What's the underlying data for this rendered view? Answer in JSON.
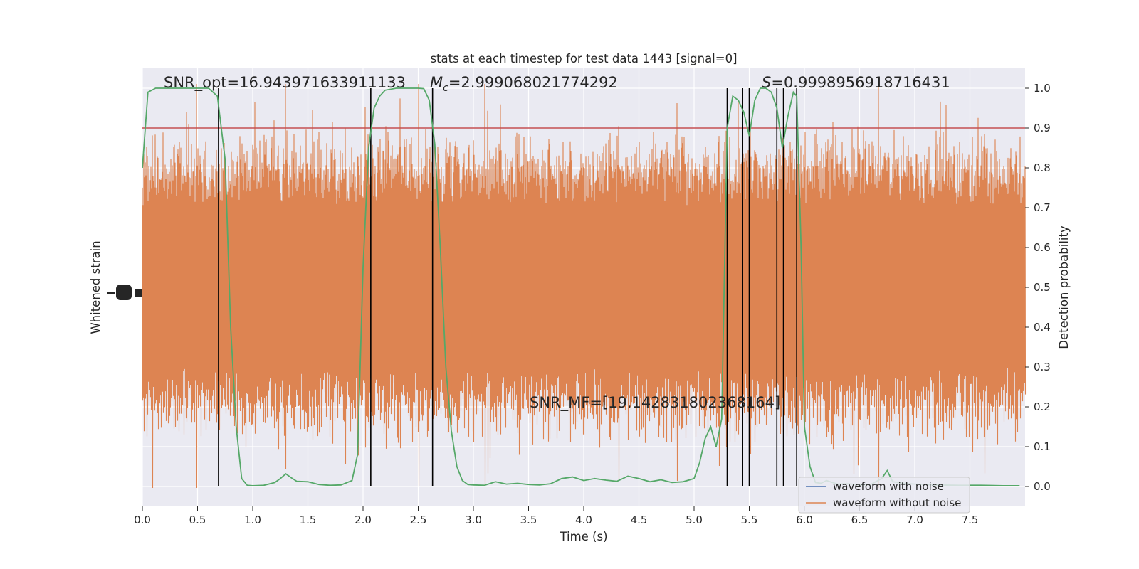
{
  "chart_data": {
    "type": "line",
    "title": "stats at each timestep for test data 1443 [signal=0]",
    "xlabel": "Time (s)",
    "ylabel_left": "Whitened strain",
    "ylabel_right": "Detection probability",
    "xlim": [
      0,
      8
    ],
    "ylim_right": [
      -0.05,
      1.05
    ],
    "x_ticks": [
      0.0,
      0.5,
      1.0,
      1.5,
      2.0,
      2.5,
      3.0,
      3.5,
      4.0,
      4.5,
      5.0,
      5.5,
      6.0,
      6.5,
      7.0,
      7.5
    ],
    "x_tick_labels": [
      "0.0",
      "0.5",
      "1.0",
      "1.5",
      "2.0",
      "2.5",
      "3.0",
      "3.5",
      "4.0",
      "4.5",
      "5.0",
      "5.5",
      "6.0",
      "6.5",
      "7.0",
      "7.5"
    ],
    "right_ticks": [
      0.0,
      0.1,
      0.2,
      0.3,
      0.4,
      0.5,
      0.6,
      0.7,
      0.8,
      0.9,
      1.0
    ],
    "right_tick_labels": [
      "0.0",
      "0.1",
      "0.2",
      "0.3",
      "0.4",
      "0.5",
      "0.6",
      "0.7",
      "0.8",
      "0.9",
      "1.0"
    ],
    "grid": true,
    "threshold": 0.9,
    "annotations": {
      "snr_opt": "SNR_opt=16.943971633911133",
      "mc_symbol": "M",
      "mc_sub": "c",
      "mc_value": "=2.999068021774292",
      "s_symbol": "S",
      "s_value": "=0.9998956918716431",
      "snr_mf": "SNR_MF=[19.142831802368164]"
    },
    "legend": {
      "position": "lower-right",
      "entries": [
        {
          "label": "waveform with noise",
          "color": "#4c72b0"
        },
        {
          "label": "waveform without noise",
          "color": "#dd8452"
        }
      ]
    },
    "vertical_lines_x": [
      0.69,
      2.07,
      2.63,
      5.3,
      5.44,
      5.5,
      5.75,
      5.81,
      5.93
    ],
    "detection_probability": {
      "x": [
        0.0,
        0.05,
        0.12,
        0.2,
        0.4,
        0.6,
        0.68,
        0.75,
        0.8,
        0.85,
        0.9,
        0.95,
        1.0,
        1.1,
        1.2,
        1.25,
        1.3,
        1.35,
        1.4,
        1.5,
        1.6,
        1.7,
        1.8,
        1.9,
        1.95,
        2.0,
        2.05,
        2.1,
        2.15,
        2.2,
        2.3,
        2.4,
        2.5,
        2.55,
        2.6,
        2.65,
        2.7,
        2.75,
        2.8,
        2.85,
        2.9,
        2.95,
        3.0,
        3.1,
        3.2,
        3.3,
        3.4,
        3.5,
        3.6,
        3.7,
        3.8,
        3.9,
        4.0,
        4.1,
        4.2,
        4.3,
        4.4,
        4.5,
        4.6,
        4.7,
        4.8,
        4.9,
        5.0,
        5.05,
        5.1,
        5.15,
        5.2,
        5.25,
        5.3,
        5.35,
        5.4,
        5.45,
        5.5,
        5.55,
        5.6,
        5.65,
        5.7,
        5.75,
        5.8,
        5.85,
        5.9,
        5.93,
        5.97,
        6.0,
        6.05,
        6.1,
        6.15,
        6.2,
        6.3,
        6.4,
        6.5,
        6.6,
        6.7,
        6.75,
        6.8,
        6.9,
        7.0,
        7.2,
        7.4,
        7.6,
        7.8,
        7.95
      ],
      "y": [
        0.8,
        0.99,
        1.0,
        1.0,
        1.0,
        1.0,
        0.98,
        0.82,
        0.4,
        0.15,
        0.02,
        0.003,
        0.002,
        0.003,
        0.01,
        0.02,
        0.032,
        0.022,
        0.013,
        0.012,
        0.005,
        0.003,
        0.004,
        0.015,
        0.08,
        0.55,
        0.85,
        0.95,
        0.98,
        0.995,
        1.0,
        1.0,
        1.0,
        0.999,
        0.97,
        0.86,
        0.6,
        0.3,
        0.14,
        0.05,
        0.015,
        0.005,
        0.004,
        0.003,
        0.012,
        0.006,
        0.008,
        0.005,
        0.004,
        0.007,
        0.02,
        0.024,
        0.015,
        0.02,
        0.016,
        0.013,
        0.026,
        0.02,
        0.012,
        0.017,
        0.01,
        0.012,
        0.02,
        0.06,
        0.12,
        0.15,
        0.1,
        0.17,
        0.9,
        0.98,
        0.97,
        0.94,
        0.88,
        0.97,
        1.0,
        1.0,
        0.99,
        0.95,
        0.85,
        0.93,
        0.99,
        0.98,
        0.6,
        0.15,
        0.05,
        0.01,
        0.008,
        0.015,
        0.006,
        0.007,
        0.004,
        0.005,
        0.02,
        0.04,
        0.012,
        0.008,
        0.006,
        0.004,
        0.003,
        0.003,
        0.002,
        0.002
      ],
      "color": "#55a868"
    },
    "strain_color": "#dd8452",
    "threshold_color": "#c44e52"
  }
}
